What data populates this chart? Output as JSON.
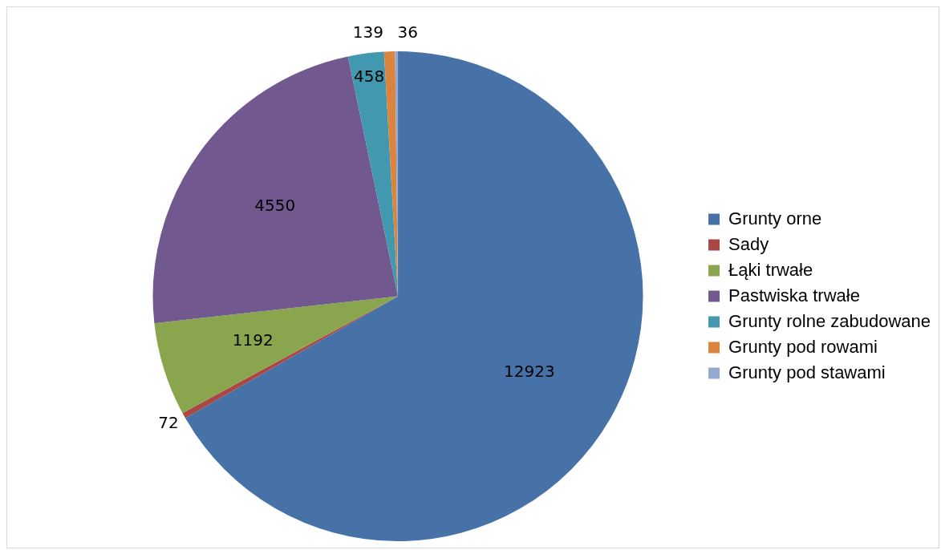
{
  "chart_data": {
    "type": "pie",
    "categories": [
      "Grunty orne",
      "Sady",
      "Łąki trwałe",
      "Pastwiska trwałe",
      "Grunty rolne zabudowane",
      "Grunty pod rowami",
      "Grunty pod stawami"
    ],
    "values": [
      12923,
      72,
      1192,
      4550,
      458,
      139,
      36
    ],
    "colors": [
      "#4672a8",
      "#aa4643",
      "#89a54e",
      "#71588f",
      "#4198af",
      "#db843d",
      "#93a9cf"
    ],
    "data_labels": true,
    "legend": "right"
  }
}
